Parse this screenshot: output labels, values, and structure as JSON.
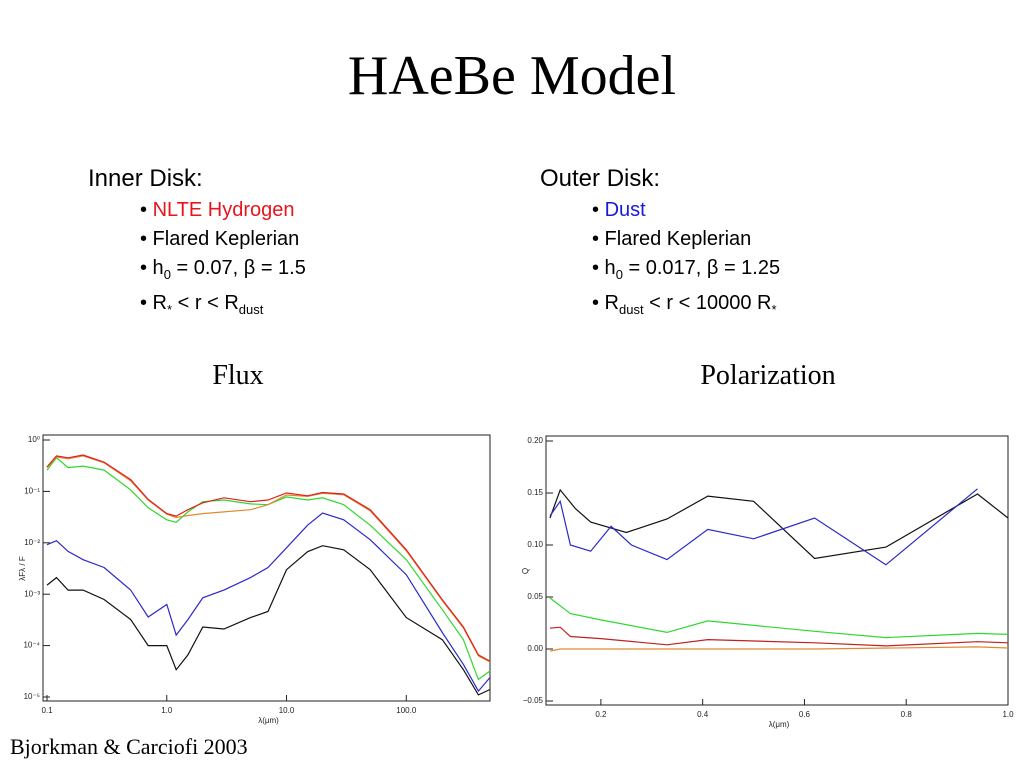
{
  "title": "HAeBe Model",
  "inner_disk": {
    "heading": "Inner Disk:",
    "bullets": [
      [
        {
          "text": "• "
        },
        {
          "text": "NLTE Hydrogen",
          "color": "#e8141c"
        }
      ],
      [
        {
          "text": "• Flared Keplerian"
        }
      ],
      [
        {
          "text": "• h"
        },
        {
          "sub": "0"
        },
        {
          "text": " = 0.07, β = 1.5"
        }
      ],
      [
        {
          "text": "• R"
        },
        {
          "sub": "*"
        },
        {
          "text": " < r < R"
        },
        {
          "sub": "dust"
        }
      ]
    ]
  },
  "outer_disk": {
    "heading": "Outer Disk:",
    "bullets": [
      [
        {
          "text": "• "
        },
        {
          "text": "Dust",
          "color": "#1a1ad6"
        }
      ],
      [
        {
          "text": "• Flared Keplerian"
        }
      ],
      [
        {
          "text": "• h"
        },
        {
          "sub": "0"
        },
        {
          "text": " = 0.017, β = 1.25"
        }
      ],
      [
        {
          "text": "• R"
        },
        {
          "sub": "dust"
        },
        {
          "text": " < r < 10000 R"
        },
        {
          "sub": "*"
        }
      ]
    ]
  },
  "footer": "Bjorkman & Carciofi 2003",
  "chart_data": [
    {
      "type": "line",
      "title": "Flux",
      "xlabel": "λ(μm)",
      "ylabel": "λFλ / F",
      "xscale": "log",
      "yscale": "log",
      "xlim": [
        0.1,
        500
      ],
      "ylim": [
        1e-05,
        1
      ],
      "xticks": [
        0.1,
        {
          "value": 1,
          "label": "1.0"
        },
        {
          "value": 10,
          "label": "10.0"
        },
        {
          "value": 100,
          "label": "100.0"
        }
      ],
      "yticks": [
        {
          "value": 1,
          "label": "10⁰"
        },
        {
          "value": 0.1,
          "label": "10⁻¹"
        },
        {
          "value": 0.01,
          "label": "10⁻²"
        },
        {
          "value": 0.001,
          "label": "10⁻³"
        },
        {
          "value": 0.0001,
          "label": "10⁻⁴"
        },
        {
          "value": 1e-05,
          "label": "10⁻⁵"
        }
      ],
      "x": [
        0.1,
        0.12,
        0.15,
        0.2,
        0.3,
        0.5,
        0.7,
        1.0,
        1.2,
        1.5,
        2,
        3,
        5,
        7,
        10,
        15,
        20,
        30,
        50,
        100,
        200,
        300,
        400,
        500
      ],
      "series": [
        {
          "color": "#111111",
          "values": [
            0.0015,
            0.0021,
            0.0012,
            0.0012,
            0.00079,
            0.00032,
            0.0001,
            0.0001,
            3.4e-05,
            6.6e-05,
            0.00023,
            0.00021,
            0.00035,
            0.00046,
            0.003,
            0.0067,
            0.0088,
            0.0073,
            0.003,
            0.00035,
            0.00013,
            3.4e-05,
            1.1e-05,
            1.4e-05
          ]
        },
        {
          "color": "#2a2ac8",
          "values": [
            0.0092,
            0.011,
            0.0068,
            0.0047,
            0.0033,
            0.0012,
            0.00036,
            0.00063,
            0.00016,
            0.00032,
            0.00085,
            0.0012,
            0.0021,
            0.0033,
            0.008,
            0.022,
            0.038,
            0.028,
            0.0115,
            0.0024,
            0.00018,
            4.3e-05,
            1.3e-05,
            2.4e-05
          ]
        },
        {
          "color": "#2fd82f",
          "values": [
            0.26,
            0.45,
            0.29,
            0.31,
            0.26,
            0.107,
            0.048,
            0.028,
            0.025,
            0.04,
            0.063,
            0.068,
            0.057,
            0.055,
            0.078,
            0.068,
            0.075,
            0.055,
            0.022,
            0.0047,
            0.0005,
            0.00013,
            2.2e-05,
            3.2e-05
          ]
        },
        {
          "color": "#e08a30",
          "values": [
            0.29,
            0.47,
            0.43,
            0.49,
            0.36,
            0.16,
            0.068,
            0.036,
            0.031,
            0.034,
            0.037,
            0.04,
            0.044,
            0.055,
            0.085,
            0.08,
            0.092,
            0.086,
            0.042,
            0.007,
            0.00075,
            0.00022,
            6.3e-05,
            4.8e-05
          ]
        },
        {
          "color": "#e02020",
          "values": [
            0.3,
            0.49,
            0.45,
            0.51,
            0.37,
            0.17,
            0.07,
            0.037,
            0.033,
            0.044,
            0.06,
            0.075,
            0.063,
            0.068,
            0.093,
            0.082,
            0.095,
            0.089,
            0.044,
            0.0073,
            0.00078,
            0.00023,
            6.6e-05,
            5e-05
          ]
        }
      ]
    },
    {
      "type": "line",
      "title": "Polarization",
      "xlabel": "λ(μm)",
      "ylabel": "Q",
      "xlim": [
        0.1,
        1.0
      ],
      "ylim": [
        -0.05,
        0.2
      ],
      "xticks": [
        0.2,
        0.4,
        0.6,
        0.8,
        {
          "value": 1,
          "label": "1.0"
        }
      ],
      "yticks": [
        {
          "value": -0.05,
          "label": "−0.05"
        },
        {
          "value": 0,
          "label": "0.00"
        },
        0.05,
        {
          "value": 0.1,
          "label": "0.10"
        },
        0.15,
        {
          "value": 0.2,
          "label": "0.20"
        }
      ],
      "series": [
        {
          "color": "#111111",
          "x": [
            0.1,
            0.12,
            0.15,
            0.18,
            0.25,
            0.33,
            0.41,
            0.5,
            0.62,
            0.76,
            0.94,
            1.0
          ],
          "values": [
            0.126,
            0.153,
            0.135,
            0.122,
            0.112,
            0.125,
            0.147,
            0.142,
            0.087,
            0.098,
            0.149,
            0.126
          ]
        },
        {
          "color": "#2a2ac8",
          "x": [
            0.1,
            0.12,
            0.14,
            0.18,
            0.22,
            0.26,
            0.33,
            0.41,
            0.5,
            0.62,
            0.76,
            0.94
          ],
          "values": [
            0.128,
            0.142,
            0.1,
            0.094,
            0.118,
            0.1,
            0.086,
            0.115,
            0.106,
            0.126,
            0.081,
            0.154
          ]
        },
        {
          "color": "#2fd82f",
          "x": [
            0.1,
            0.14,
            0.2,
            0.33,
            0.41,
            0.62,
            0.76,
            0.94,
            1.0
          ],
          "values": [
            0.049,
            0.034,
            0.028,
            0.016,
            0.027,
            0.017,
            0.011,
            0.015,
            0.014
          ]
        },
        {
          "color": "#c02020",
          "x": [
            0.1,
            0.12,
            0.14,
            0.2,
            0.33,
            0.41,
            0.62,
            0.76,
            0.94,
            1.0
          ],
          "values": [
            0.02,
            0.021,
            0.012,
            0.01,
            0.004,
            0.009,
            0.006,
            0.003,
            0.007,
            0.006
          ]
        },
        {
          "color": "#e08a30",
          "x": [
            0.1,
            0.12,
            0.33,
            0.62,
            0.94,
            1.0
          ],
          "values": [
            -0.002,
            0,
            0,
            0,
            0.002,
            0.001
          ]
        }
      ]
    }
  ]
}
